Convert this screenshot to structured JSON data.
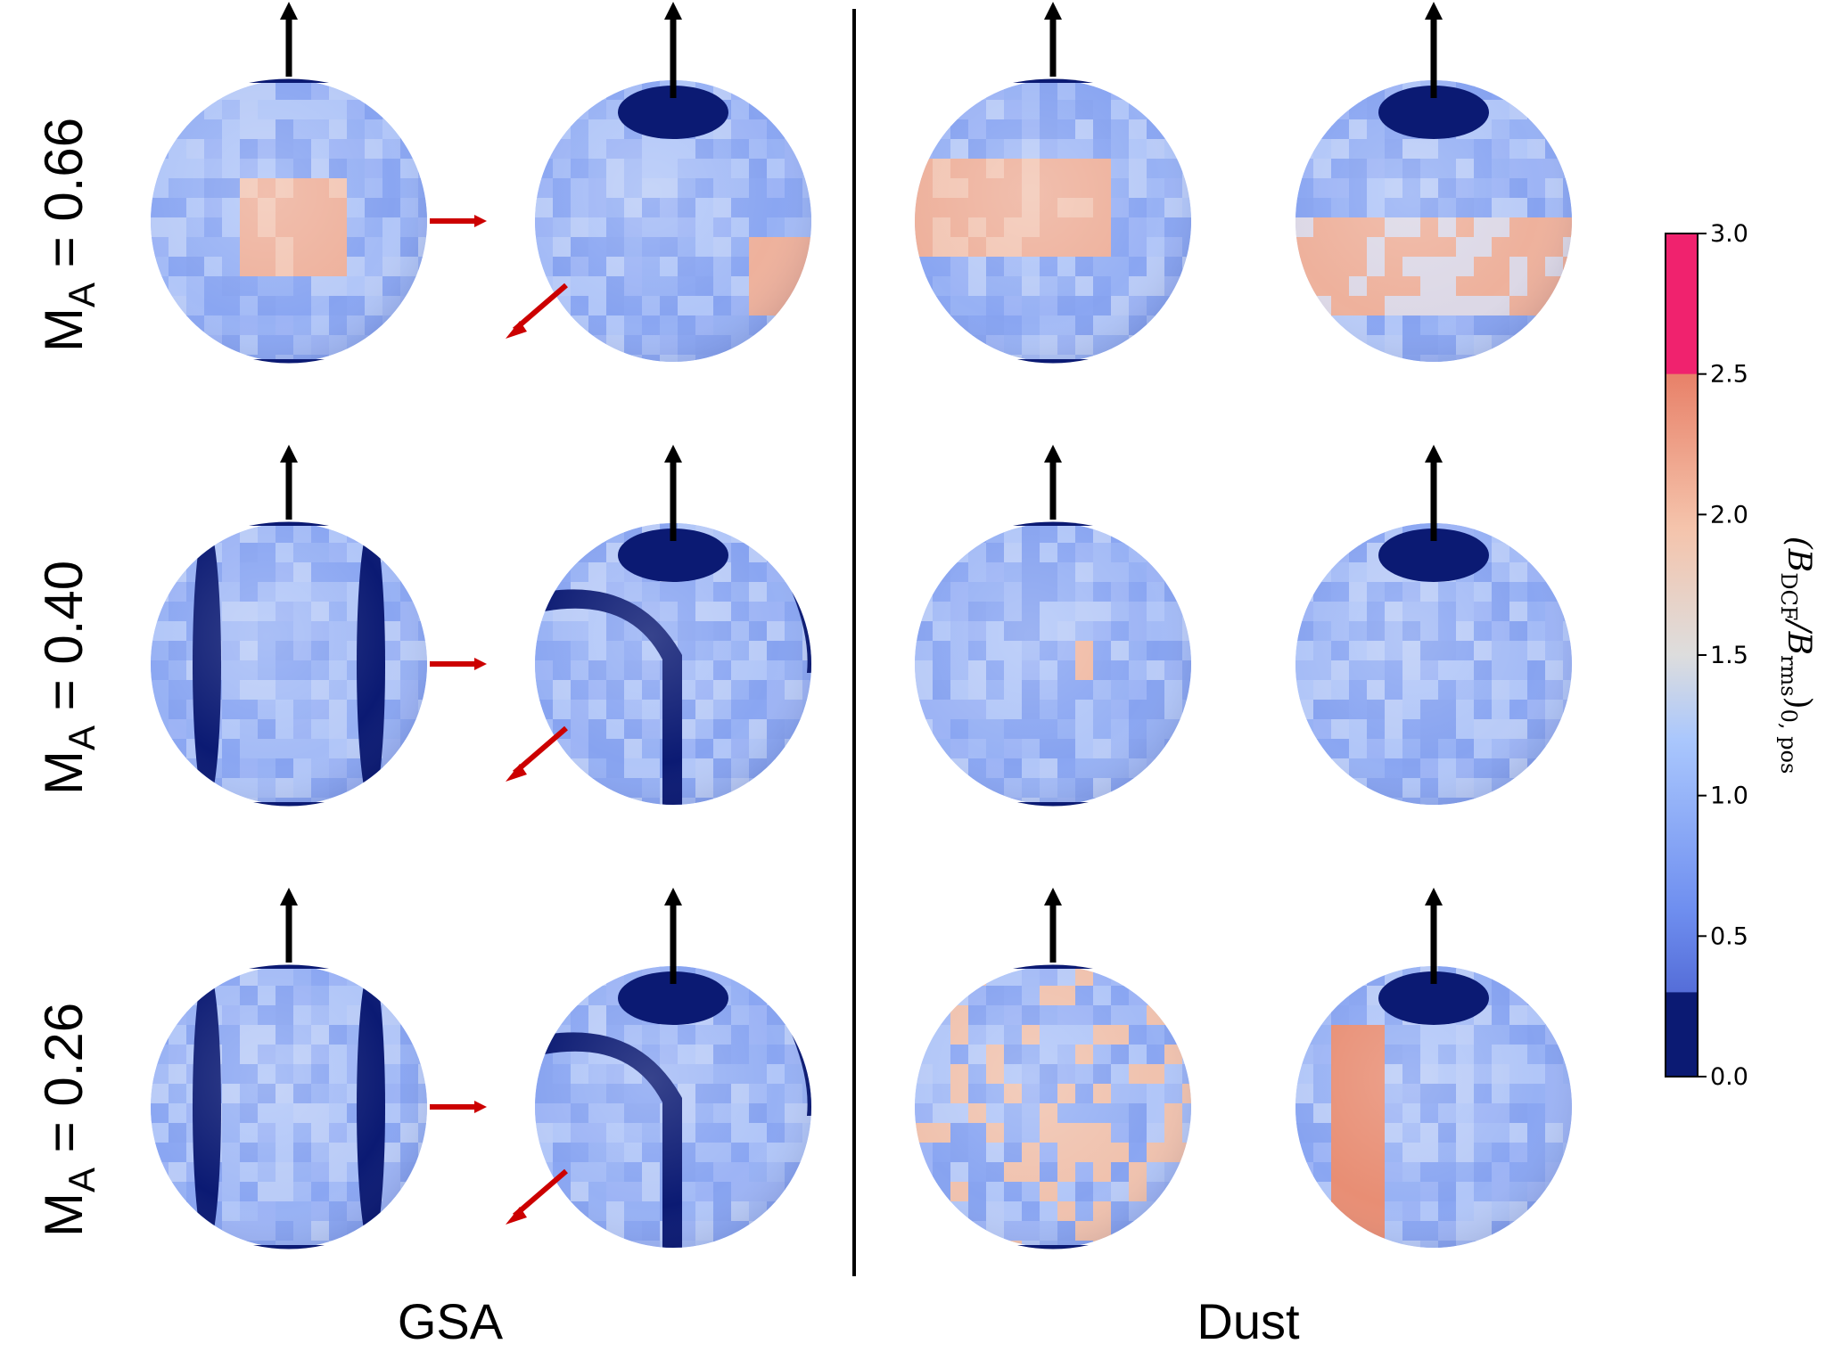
{
  "columns": {
    "left_label": "GSA",
    "right_label": "Dust"
  },
  "rows": [
    {
      "prefix": "M",
      "subscript": "A",
      "value_text": " = 0.66"
    },
    {
      "prefix": "M",
      "subscript": "A",
      "value_text": " = 0.40"
    },
    {
      "prefix": "M",
      "subscript": "A",
      "value_text": " = 0.26"
    }
  ],
  "colorbar": {
    "ticks": [
      "0.0",
      "0.5",
      "1.0",
      "1.5",
      "2.0",
      "2.5",
      "3.0"
    ],
    "tick_values": [
      0,
      0.5,
      1.0,
      1.5,
      2.0,
      2.5,
      3.0
    ],
    "range": [
      0,
      3.0
    ],
    "label_main": "(B",
    "label_sub1": "DCF",
    "label_mid": "/B",
    "label_sub2": "rms",
    "label_end": ")",
    "label_sub3": "0, pos",
    "low_color": "#0b1a73",
    "high_color": "#f0226e",
    "low_cut": 0.3,
    "high_cut": 2.5
  },
  "colors": {
    "pole": "#0b1a73",
    "sphere_base": "#9db4f5",
    "sphere_light": "#c3d3f8",
    "warm": "#eeb19c",
    "warm_strong": "#e88e74",
    "dark_band": "#0b1a73",
    "mid_blue": "#5f80e6",
    "arrow_black": "#000000",
    "arrow_red": "#cc0000"
  }
}
